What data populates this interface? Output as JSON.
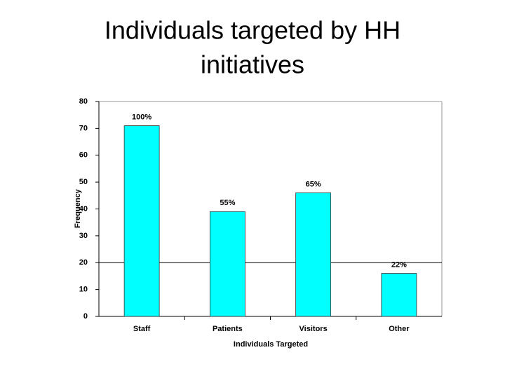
{
  "chart_data": {
    "type": "bar",
    "title": "Individuals targeted by HH initiatives",
    "x_label": "Individuals Targeted",
    "y_label": "Frequency",
    "categories": [
      "Staff",
      "Patients",
      "Visitors",
      "Other"
    ],
    "values": [
      71,
      39,
      46,
      16
    ],
    "annotations": [
      "100%",
      "55%",
      "65%",
      "22%"
    ],
    "color": "#00ffff",
    "ylim": [
      0,
      80
    ],
    "yticks": [
      0,
      10,
      20,
      30,
      40,
      50,
      60,
      70,
      80
    ],
    "reference_line": 20
  }
}
